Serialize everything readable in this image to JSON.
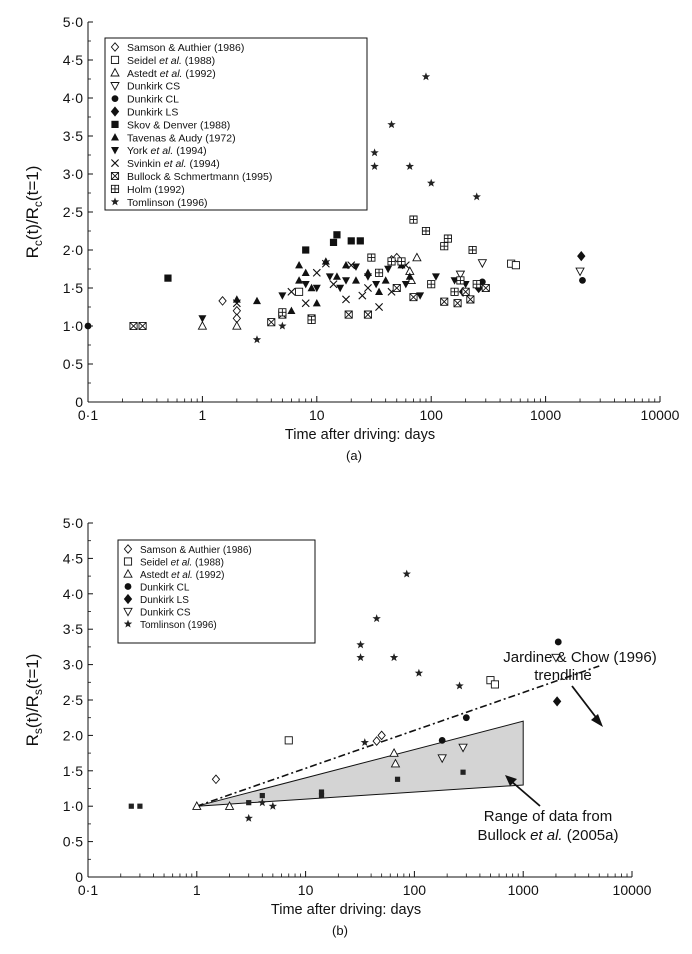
{
  "chart_data": [
    {
      "type": "scatter",
      "panel_label": "(a)",
      "xlabel": "Time after driving: days",
      "ylabel": {
        "base": "R",
        "sub": "c",
        "text": "(t)/R",
        "sub2": "c",
        "tail": "(t=1)"
      },
      "x_scale": "log",
      "xlim": [
        0.1,
        10000
      ],
      "ylim": [
        0,
        5.0
      ],
      "x_ticks": [
        "0·1",
        "1",
        "10",
        "100",
        "1000",
        "10000"
      ],
      "y_ticks": [
        "0",
        "0·5",
        "1·0",
        "1·5",
        "2·0",
        "2·5",
        "3·0",
        "3·5",
        "4·0",
        "4·5",
        "5·0"
      ],
      "legend_position": "top-left",
      "series": [
        {
          "name": "Samson & Authier (1986)",
          "marker": "diamond-open",
          "points": [
            [
              1.5,
              1.33
            ],
            [
              2,
              1.2
            ],
            [
              2,
              1.1
            ],
            [
              45,
              1.87
            ],
            [
              50,
              1.9
            ]
          ]
        },
        {
          "name": "Seidel et al. (1988)",
          "legend": [
            "Seidel ",
            "et al.",
            " (1988)"
          ],
          "marker": "square-open",
          "points": [
            [
              7,
              1.45
            ],
            [
              500,
              1.82
            ],
            [
              550,
              1.8
            ]
          ]
        },
        {
          "name": "Astedt et al. (1992)",
          "legend": [
            "Astedt ",
            "et al.",
            " (1992)"
          ],
          "marker": "triangle-open",
          "points": [
            [
              1,
              1.0
            ],
            [
              2,
              1.0
            ],
            [
              65,
              1.72
            ],
            [
              67,
              1.6
            ],
            [
              75,
              1.9
            ]
          ]
        },
        {
          "name": "Dunkirk CS",
          "marker": "triangle-down-open",
          "points": [
            [
              180,
              1.68
            ],
            [
              280,
              1.83
            ],
            [
              2000,
              1.72
            ]
          ]
        },
        {
          "name": "Dunkirk CL",
          "marker": "circle-filled",
          "points": [
            [
              0.1,
              1.0
            ],
            [
              180,
              1.6
            ],
            [
              280,
              1.58
            ],
            [
              2100,
              1.6
            ]
          ]
        },
        {
          "name": "Dunkirk LS",
          "marker": "diamond-filled",
          "points": [
            [
              190,
              1.45
            ],
            [
              260,
              1.5
            ],
            [
              2050,
              1.92
            ]
          ]
        },
        {
          "name": "Skov & Denver (1988)",
          "marker": "square-filled",
          "points": [
            [
              0.5,
              1.63
            ],
            [
              8,
              2.0
            ],
            [
              15,
              2.2
            ],
            [
              20,
              2.12
            ],
            [
              24,
              2.12
            ],
            [
              14,
              2.1
            ]
          ]
        },
        {
          "name": "Tavenas & Audy (1972)",
          "marker": "triangle-up-filled",
          "points": [
            [
              2,
              1.35
            ],
            [
              3,
              1.33
            ],
            [
              6,
              1.2
            ],
            [
              7,
              1.6
            ],
            [
              7,
              1.8
            ],
            [
              8,
              1.7
            ],
            [
              9,
              1.5
            ],
            [
              10,
              1.3
            ],
            [
              12,
              1.85
            ],
            [
              15,
              1.65
            ],
            [
              18,
              1.8
            ],
            [
              22,
              1.6
            ],
            [
              28,
              1.7
            ],
            [
              35,
              1.45
            ],
            [
              40,
              1.6
            ],
            [
              55,
              1.8
            ],
            [
              65,
              1.65
            ]
          ]
        },
        {
          "name": "York et al. (1994)",
          "legend": [
            "York ",
            "et al.",
            " (1994)"
          ],
          "marker": "triangle-down-filled",
          "points": [
            [
              1,
              1.1
            ],
            [
              5,
              1.4
            ],
            [
              8,
              1.55
            ],
            [
              10,
              1.5
            ],
            [
              13,
              1.65
            ],
            [
              16,
              1.5
            ],
            [
              18,
              1.6
            ],
            [
              22,
              1.78
            ],
            [
              28,
              1.65
            ],
            [
              33,
              1.55
            ],
            [
              42,
              1.75
            ],
            [
              60,
              1.55
            ],
            [
              80,
              1.4
            ],
            [
              110,
              1.65
            ],
            [
              160,
              1.6
            ],
            [
              200,
              1.55
            ]
          ]
        },
        {
          "name": "Svinkin et al. (1994)",
          "legend": [
            "Svinkin ",
            "et al.",
            " (1994)"
          ],
          "marker": "x",
          "points": [
            [
              2,
              1.3
            ],
            [
              6,
              1.45
            ],
            [
              8,
              1.3
            ],
            [
              10,
              1.7
            ],
            [
              12,
              1.82
            ],
            [
              14,
              1.55
            ],
            [
              18,
              1.35
            ],
            [
              20,
              1.8
            ],
            [
              25,
              1.4
            ],
            [
              28,
              1.5
            ],
            [
              35,
              1.25
            ],
            [
              45,
              1.45
            ],
            [
              60,
              1.8
            ]
          ]
        },
        {
          "name": "Bullock & Schmertmann (1995)",
          "marker": "square-x",
          "points": [
            [
              0.25,
              1.0
            ],
            [
              0.3,
              1.0
            ],
            [
              4,
              1.05
            ],
            [
              5,
              1.15
            ],
            [
              9,
              1.1
            ],
            [
              19,
              1.15
            ],
            [
              28,
              1.15
            ],
            [
              50,
              1.5
            ],
            [
              70,
              1.38
            ],
            [
              130,
              1.32
            ],
            [
              170,
              1.3
            ],
            [
              200,
              1.45
            ],
            [
              220,
              1.35
            ],
            [
              300,
              1.5
            ]
          ]
        },
        {
          "name": "Holm (1992)",
          "marker": "square-plus",
          "points": [
            [
              5,
              1.18
            ],
            [
              9,
              1.08
            ],
            [
              30,
              1.9
            ],
            [
              35,
              1.7
            ],
            [
              45,
              1.85
            ],
            [
              55,
              1.85
            ],
            [
              70,
              2.4
            ],
            [
              90,
              2.25
            ],
            [
              100,
              1.55
            ],
            [
              130,
              2.05
            ],
            [
              140,
              2.15
            ],
            [
              160,
              1.45
            ],
            [
              180,
              1.6
            ],
            [
              230,
              2.0
            ],
            [
              250,
              1.55
            ]
          ]
        },
        {
          "name": "Tomlinson (1996)",
          "marker": "star",
          "points": [
            [
              3,
              0.82
            ],
            [
              5,
              1.0
            ],
            [
              32,
              3.28
            ],
            [
              32,
              3.1
            ],
            [
              45,
              3.65
            ],
            [
              65,
              3.1
            ],
            [
              90,
              4.28
            ],
            [
              100,
              2.88
            ],
            [
              250,
              2.7
            ]
          ]
        }
      ]
    },
    {
      "type": "scatter",
      "panel_label": "(b)",
      "xlabel": "Time after driving: days",
      "ylabel": {
        "base": "R",
        "sub": "s",
        "text": "(t)/R",
        "sub2": "s",
        "tail": "(t=1)"
      },
      "x_scale": "log",
      "xlim": [
        0.1,
        10000
      ],
      "ylim": [
        0,
        5.0
      ],
      "x_ticks": [
        "0·1",
        "1",
        "10",
        "100",
        "1000",
        "10000"
      ],
      "y_ticks": [
        "0",
        "0·5",
        "1·0",
        "1·5",
        "2·0",
        "2·5",
        "3·0",
        "3·5",
        "4·0",
        "4·5",
        "5·0"
      ],
      "legend_position": "top-left",
      "series": [
        {
          "name": "Samson & Authier (1986)",
          "marker": "diamond-open",
          "points": [
            [
              1.5,
              1.38
            ],
            [
              45,
              1.92
            ],
            [
              50,
              2.0
            ]
          ]
        },
        {
          "name": "Seidel et al. (1988)",
          "legend": [
            "Seidel ",
            "et al.",
            " (1988)"
          ],
          "marker": "square-open",
          "points": [
            [
              7,
              1.93
            ],
            [
              500,
              2.78
            ],
            [
              550,
              2.72
            ]
          ]
        },
        {
          "name": "Astedt et al. (1992)",
          "legend": [
            "Astedt ",
            "et al.",
            " (1992)"
          ],
          "marker": "triangle-open",
          "points": [
            [
              1,
              1.0
            ],
            [
              2,
              1.0
            ],
            [
              65,
              1.75
            ],
            [
              67,
              1.6
            ]
          ]
        },
        {
          "name": "Dunkirk CL",
          "marker": "circle-filled",
          "points": [
            [
              180,
              1.93
            ],
            [
              300,
              2.25
            ],
            [
              2100,
              3.32
            ]
          ]
        },
        {
          "name": "Dunkirk LS",
          "marker": "diamond-filled",
          "points": [
            [
              2050,
              2.48
            ]
          ]
        },
        {
          "name": "Dunkirk CS",
          "marker": "triangle-down-open",
          "points": [
            [
              180,
              1.68
            ],
            [
              280,
              1.83
            ],
            [
              2000,
              3.1
            ]
          ]
        },
        {
          "name": "Tomlinson (1996)",
          "marker": "star",
          "points": [
            [
              3,
              0.83
            ],
            [
              4,
              1.05
            ],
            [
              5,
              1.0
            ],
            [
              32,
              3.28
            ],
            [
              32,
              3.1
            ],
            [
              45,
              3.65
            ],
            [
              65,
              3.1
            ],
            [
              85,
              4.28
            ],
            [
              110,
              2.88
            ],
            [
              260,
              2.7
            ],
            [
              35,
              1.9
            ]
          ]
        },
        {
          "marker": "square-small",
          "points": [
            [
              0.25,
              1.0
            ],
            [
              0.3,
              1.0
            ],
            [
              3,
              1.05
            ],
            [
              4,
              1.15
            ],
            [
              14,
              1.2
            ],
            [
              14,
              1.15
            ],
            [
              70,
              1.38
            ],
            [
              280,
              1.48
            ]
          ]
        }
      ],
      "trendline": {
        "label_lines": [
          "Jardine & Chow (1996)",
          "trendline"
        ],
        "points": [
          [
            1,
            1.0
          ],
          [
            5000,
            2.98
          ]
        ]
      },
      "range_area": {
        "label_lines": [
          "Range of data from",
          "Bullock ",
          "et al.",
          " (2005a)"
        ],
        "polygon": [
          [
            1,
            1.0
          ],
          [
            1000,
            2.2
          ],
          [
            1000,
            1.3
          ]
        ]
      }
    }
  ]
}
